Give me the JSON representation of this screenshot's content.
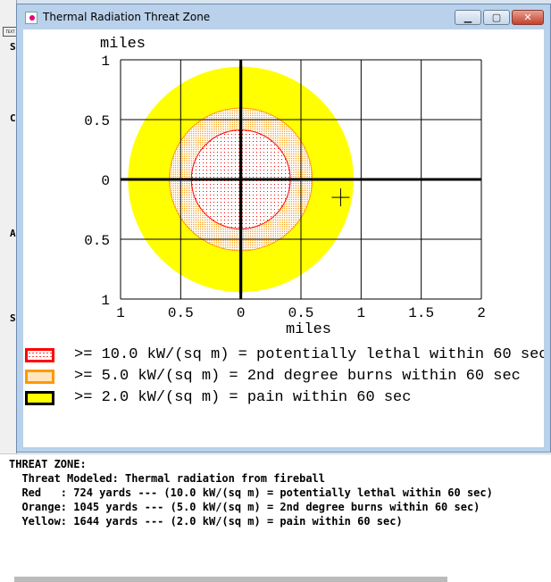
{
  "background_window": {
    "letters": [
      "S",
      "C",
      "A",
      "S"
    ],
    "icon_label": "TEXT"
  },
  "window": {
    "title": "Thermal Radiation Threat Zone",
    "minimize": "▁",
    "maximize": "▢",
    "close": "✕"
  },
  "chart_data": {
    "type": "threat-zone-circles",
    "ylabel": "miles",
    "xlabel": "miles",
    "xlim": [
      -1,
      2
    ],
    "ylim": [
      -1,
      1
    ],
    "x_ticks": [
      -1,
      -0.5,
      0,
      0.5,
      1,
      1.5,
      2
    ],
    "x_tick_labels": [
      "1",
      "0.5",
      "0",
      "0.5",
      "1",
      "1.5",
      "2"
    ],
    "y_ticks": [
      1,
      0.5,
      0,
      -0.5,
      -1
    ],
    "y_tick_labels": [
      "1",
      "0.5",
      "0",
      "0.5",
      "1"
    ],
    "grid": true,
    "zones": [
      {
        "color": "yellow",
        "radius_yards": 1644,
        "fill": "#ffff00"
      },
      {
        "color": "orange",
        "radius_yards": 1045,
        "fill": "#ff9900"
      },
      {
        "color": "red",
        "radius_yards": 724,
        "fill": "#ff0000"
      }
    ],
    "marker": {
      "type": "crosshair",
      "x": 0.83,
      "y": -0.15
    }
  },
  "legend": [
    {
      "text": ">= 10.0 kW/(sq m) = potentially lethal within 60 sec",
      "border": "#ff0000"
    },
    {
      "text": ">= 5.0 kW/(sq m) = 2nd degree burns within 60 sec",
      "border": "#ff9900"
    },
    {
      "text": ">= 2.0 kW/(sq m) = pain within 60 sec",
      "border": "#000000"
    }
  ],
  "report": {
    "lines": [
      "THREAT ZONE:",
      "  Threat Modeled: Thermal radiation from fireball",
      "  Red   : 724 yards --- (10.0 kW/(sq m) = potentially lethal within 60 sec)",
      "  Orange: 1045 yards --- (5.0 kW/(sq m) = 2nd degree burns within 60 sec)",
      "  Yellow: 1644 yards --- (2.0 kW/(sq m) = pain within 60 sec)"
    ]
  }
}
